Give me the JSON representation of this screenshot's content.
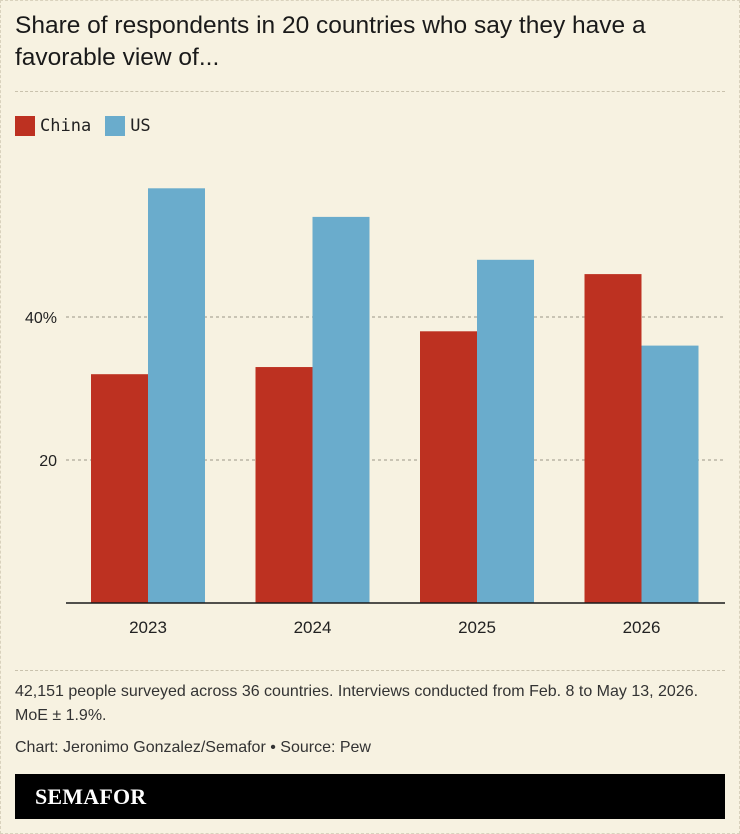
{
  "title": "Share of respondents in 20 countries who say they have a favorable view of...",
  "note": "42,151 people surveyed across 36 countries. Interviews conducted from Feb. 8 to May 13, 2026. MoE ± 1.9%.",
  "credit": "Chart: Jeronimo Gonzalez/Semafor • Source: Pew",
  "logo": "SEMAFOR",
  "colors": {
    "china": "#bd3121",
    "us": "#6aaccc",
    "background": "#f7f2e1"
  },
  "chart_data": {
    "type": "bar",
    "title": "Share of respondents in 20 countries who say they have a favorable view of...",
    "categories": [
      "2023",
      "2024",
      "2025",
      "2026"
    ],
    "series": [
      {
        "name": "China",
        "color": "#bd3121",
        "values": [
          32,
          33,
          38,
          46
        ]
      },
      {
        "name": "US",
        "color": "#6aaccc",
        "values": [
          58,
          54,
          48,
          36
        ]
      }
    ],
    "yticks": [
      {
        "value": 20,
        "label": "20"
      },
      {
        "value": 40,
        "label": "40%"
      }
    ],
    "ylim": [
      0,
      60
    ],
    "grid": true,
    "legend": "top-left",
    "xlabel": "",
    "ylabel": ""
  }
}
